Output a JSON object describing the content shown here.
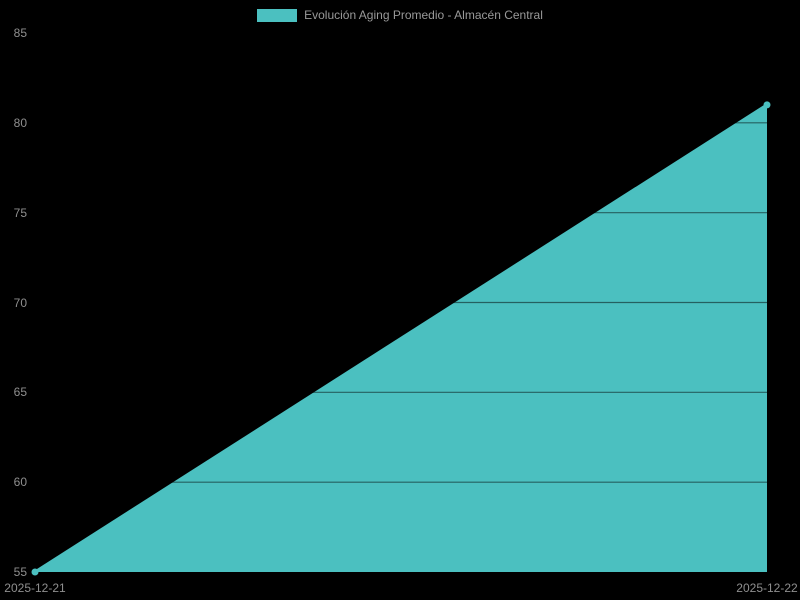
{
  "legend": {
    "label": "Evolución Aging Promedio - Almacén Central",
    "swatch_color": "#4bc0c0"
  },
  "chart_data": {
    "type": "area",
    "title": "Evolución Aging Promedio - Almacén Central",
    "x": [
      "2025-12-21",
      "2025-12-22"
    ],
    "series": [
      {
        "name": "Evolución Aging Promedio - Almacén Central",
        "values": [
          55,
          81
        ],
        "color": "#4bc0c0"
      }
    ],
    "xlabel": "",
    "ylabel": "",
    "ylim": [
      55,
      85
    ],
    "yticks": [
      55,
      60,
      65,
      70,
      75,
      80,
      85
    ],
    "legend_position": "top-center",
    "grid": "horizontal",
    "colors": {
      "background": "#000000",
      "fill": "#4bc0c0",
      "line": "#4bc0c0",
      "point": "#4bc0c0",
      "gridline": "rgba(0,0,0,0.5)",
      "tick_text": "#8f8f8f",
      "legend_text": "#999999"
    }
  }
}
